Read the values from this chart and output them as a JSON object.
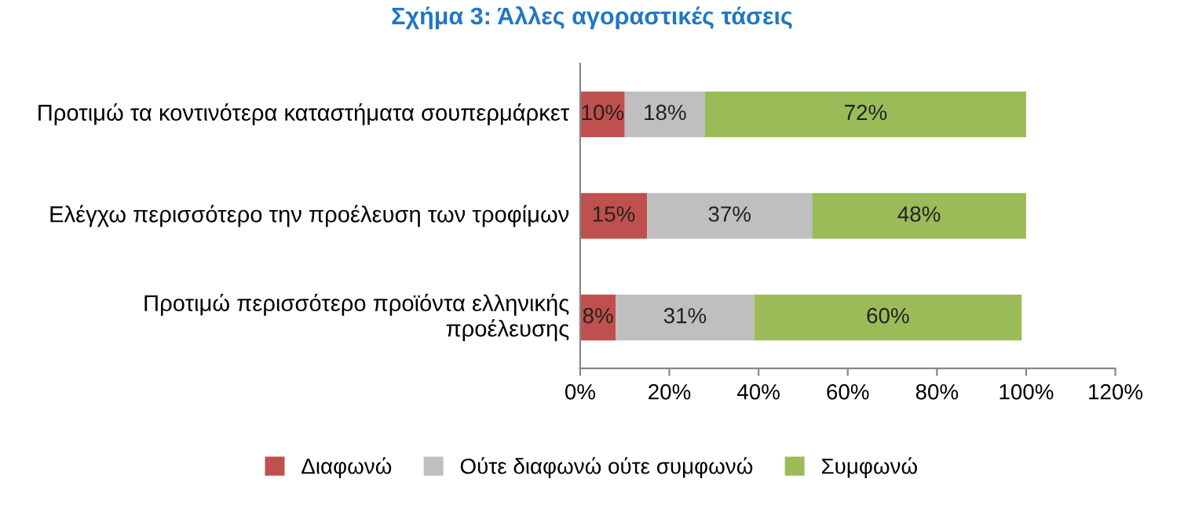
{
  "chart_data": {
    "type": "bar",
    "orientation": "horizontal",
    "stacked": true,
    "title": "Σχήμα 3: Άλλες αγοραστικές τάσεις",
    "categories": [
      "Προτιμώ τα κοντινότερα καταστήματα σουπερμάρκετ",
      "Ελέγχω περισσότερο την προέλευση των τροφίμων",
      "Προτιμώ περισσότερο προϊόντα ελληνικής προέλευσης"
    ],
    "series": [
      {
        "name": "Διαφωνώ",
        "color": "#c0504d",
        "values": [
          10,
          15,
          8
        ],
        "value_labels": [
          "10%",
          "15%",
          "8%"
        ]
      },
      {
        "name": "Ούτε διαφωνώ ούτε συμφωνώ",
        "color": "#bfbfbf",
        "values": [
          18,
          37,
          31
        ],
        "value_labels": [
          "18%",
          "37%",
          "31%"
        ]
      },
      {
        "name": "Συμφωνώ",
        "color": "#9bbb59",
        "values": [
          72,
          48,
          60
        ],
        "value_labels": [
          "72%",
          "48%",
          "60%"
        ]
      }
    ],
    "xlim": [
      0,
      120
    ],
    "xticks": [
      {
        "value": 0,
        "label": "0%"
      },
      {
        "value": 20,
        "label": "20%"
      },
      {
        "value": 40,
        "label": "40%"
      },
      {
        "value": 60,
        "label": "60%"
      },
      {
        "value": 80,
        "label": "80%"
      },
      {
        "value": 100,
        "label": "100%"
      },
      {
        "value": 120,
        "label": "120%"
      }
    ],
    "grid": false,
    "legend": "bottom"
  }
}
